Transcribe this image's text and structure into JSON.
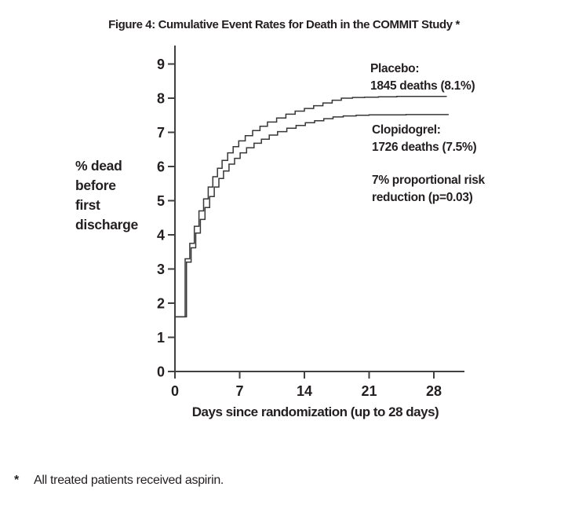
{
  "figure": {
    "title": "Figure 4: Cumulative Event Rates for Death in the COMMIT Study *",
    "y_axis_label_lines": [
      "% dead",
      "before",
      "first",
      "discharge"
    ],
    "footnote_marker": "*",
    "footnote_text": "All treated patients received aspirin."
  },
  "chart_data": {
    "type": "line",
    "subtype": "step",
    "title": "Figure 4: Cumulative Event Rates for Death in the COMMIT Study *",
    "xlabel": "Days since randomization (up to 28 days)",
    "ylabel": "% dead before first discharge",
    "xlim": [
      0,
      31
    ],
    "ylim": [
      0,
      9.5
    ],
    "x_ticks": [
      0,
      7,
      14,
      21,
      28
    ],
    "y_ticks": [
      0,
      1,
      2,
      3,
      4,
      5,
      6,
      7,
      8,
      9
    ],
    "grid": false,
    "legend_position": "right-of-curves",
    "line_color": "#373737",
    "axis_color": "#414141",
    "annotation_lines": [
      "7% proportional risk",
      "reduction (p=0.03)"
    ],
    "footnote": "* All treated patients received aspirin.",
    "series": [
      {
        "name": "Placebo",
        "deaths": 1845,
        "final_pct": 8.1,
        "label_line1": "Placebo:",
        "label_line2": "1845 deaths (8.1%)",
        "points": [
          [
            0,
            1.6
          ],
          [
            1.1,
            3.3
          ],
          [
            1.6,
            3.75
          ],
          [
            2.1,
            4.25
          ],
          [
            2.6,
            4.7
          ],
          [
            3.1,
            5.05
          ],
          [
            3.6,
            5.4
          ],
          [
            4.1,
            5.7
          ],
          [
            4.6,
            5.95
          ],
          [
            5.1,
            6.18
          ],
          [
            5.7,
            6.4
          ],
          [
            6.3,
            6.58
          ],
          [
            6.9,
            6.75
          ],
          [
            7.6,
            6.9
          ],
          [
            8.4,
            7.05
          ],
          [
            9.2,
            7.18
          ],
          [
            10,
            7.3
          ],
          [
            11,
            7.42
          ],
          [
            12,
            7.53
          ],
          [
            13,
            7.62
          ],
          [
            14,
            7.7
          ],
          [
            15,
            7.78
          ],
          [
            16,
            7.86
          ],
          [
            17,
            7.94
          ],
          [
            18,
            8.0
          ],
          [
            19.2,
            8.02
          ],
          [
            20.5,
            8.03
          ],
          [
            22,
            8.04
          ],
          [
            24,
            8.05
          ],
          [
            29.4,
            8.05
          ]
        ]
      },
      {
        "name": "Clopidogrel",
        "deaths": 1726,
        "final_pct": 7.5,
        "label_line1": "Clopidogrel:",
        "label_line2": "1726 deaths (7.5%)",
        "points": [
          [
            0,
            1.6
          ],
          [
            1.25,
            3.2
          ],
          [
            1.75,
            3.62
          ],
          [
            2.25,
            4.05
          ],
          [
            2.75,
            4.45
          ],
          [
            3.25,
            4.8
          ],
          [
            3.75,
            5.12
          ],
          [
            4.25,
            5.4
          ],
          [
            4.75,
            5.65
          ],
          [
            5.25,
            5.87
          ],
          [
            5.85,
            6.07
          ],
          [
            6.45,
            6.24
          ],
          [
            7.05,
            6.4
          ],
          [
            7.75,
            6.55
          ],
          [
            8.55,
            6.68
          ],
          [
            9.35,
            6.8
          ],
          [
            10.2,
            6.92
          ],
          [
            11.1,
            7.02
          ],
          [
            12.1,
            7.12
          ],
          [
            13.1,
            7.2
          ],
          [
            14.1,
            7.28
          ],
          [
            15.1,
            7.34
          ],
          [
            16.1,
            7.4
          ],
          [
            17.1,
            7.45
          ],
          [
            18.2,
            7.48
          ],
          [
            19.6,
            7.5
          ],
          [
            21,
            7.51
          ],
          [
            23,
            7.51
          ],
          [
            25,
            7.52
          ],
          [
            29.6,
            7.52
          ]
        ]
      }
    ]
  }
}
